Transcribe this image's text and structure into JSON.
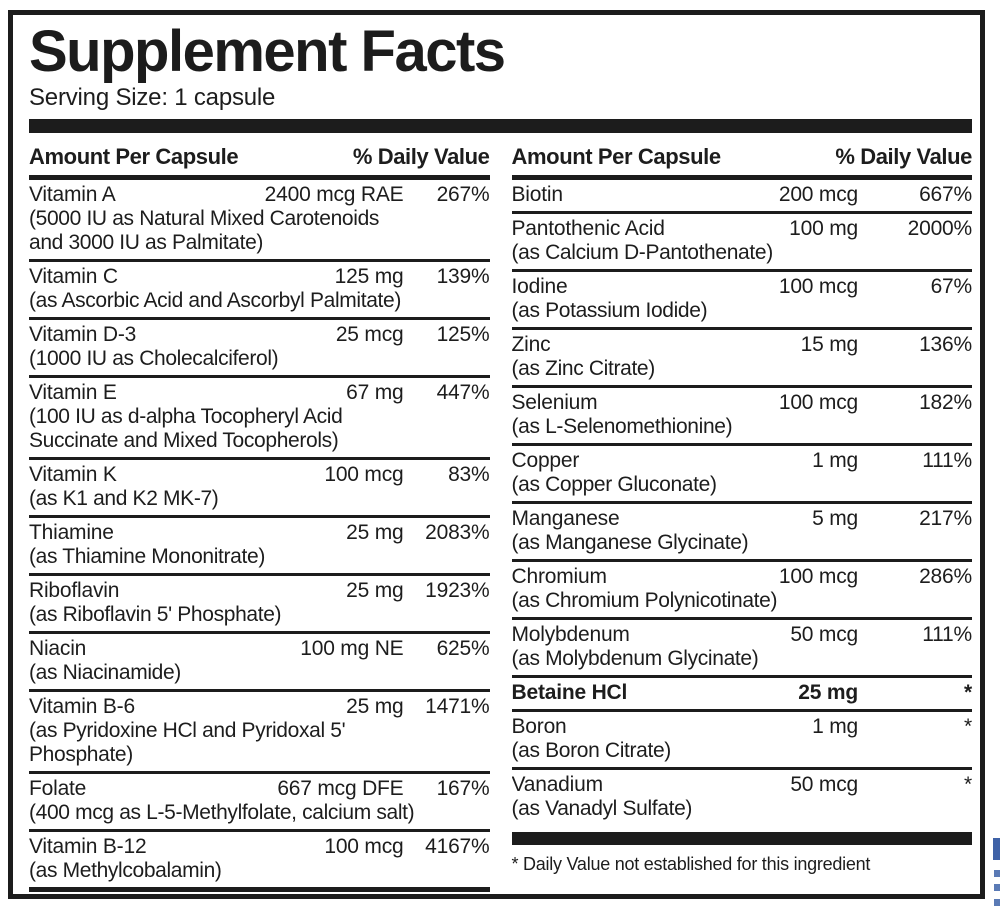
{
  "label": {
    "title": "Supplement Facts",
    "serving_size": "Serving Size: 1 capsule",
    "column_header": {
      "amount": "Amount Per Capsule",
      "daily_value": "% Daily Value"
    },
    "footnote": "* Daily Value not established for this ingredient"
  },
  "columns": {
    "left": [
      {
        "name": "Vitamin A",
        "amount": "2400 mcg RAE",
        "dv": "267%",
        "details": [
          "(5000 IU as Natural Mixed Carotenoids",
          "and 3000 IU as Palmitate)"
        ]
      },
      {
        "name": "Vitamin C",
        "amount": "125 mg",
        "dv": "139%",
        "details": [
          "(as Ascorbic Acid and Ascorbyl Palmitate)"
        ]
      },
      {
        "name": "Vitamin D-3",
        "amount": "25 mcg",
        "dv": "125%",
        "details": [
          "(1000 IU as Cholecalciferol)"
        ]
      },
      {
        "name": "Vitamin E",
        "amount": "67 mg",
        "dv": "447%",
        "details": [
          "(100 IU as d-alpha Tocopheryl Acid",
          "Succinate and Mixed Tocopherols)"
        ]
      },
      {
        "name": "Vitamin K",
        "amount": "100 mcg",
        "dv": "83%",
        "details": [
          "(as K1 and K2 MK-7)"
        ]
      },
      {
        "name": "Thiamine",
        "amount": "25 mg",
        "dv": "2083%",
        "details": [
          "(as Thiamine Mononitrate)"
        ]
      },
      {
        "name": "Riboflavin",
        "amount": "25 mg",
        "dv": "1923%",
        "details": [
          "(as Riboflavin 5' Phosphate)"
        ]
      },
      {
        "name": "Niacin",
        "amount": "100 mg NE",
        "dv": "625%",
        "details": [
          "(as Niacinamide)"
        ]
      },
      {
        "name": "Vitamin B-6",
        "amount": "25 mg",
        "dv": "1471%",
        "details": [
          "(as Pyridoxine HCl and Pyridoxal 5'",
          "Phosphate)"
        ]
      },
      {
        "name": "Folate",
        "amount": "667 mcg DFE",
        "dv": "167%",
        "details": [
          "(400 mcg as L-5-Methylfolate, calcium salt)"
        ]
      },
      {
        "name": "Vitamin B-12",
        "amount": "100 mcg",
        "dv": "4167%",
        "details": [
          "(as Methylcobalamin)"
        ]
      }
    ],
    "right": [
      {
        "name": "Biotin",
        "amount": "200 mcg",
        "dv": "667%",
        "details": []
      },
      {
        "name": "Pantothenic Acid",
        "amount": "100 mg",
        "dv": "2000%",
        "details": [
          "(as Calcium D-Pantothenate)"
        ]
      },
      {
        "name": "Iodine",
        "amount": "100 mcg",
        "dv": "67%",
        "details": [
          "(as Potassium Iodide)"
        ]
      },
      {
        "name": "Zinc",
        "amount": "15 mg",
        "dv": "136%",
        "details": [
          "(as Zinc Citrate)"
        ]
      },
      {
        "name": "Selenium",
        "amount": "100 mcg",
        "dv": "182%",
        "details": [
          "(as L-Selenomethionine)"
        ]
      },
      {
        "name": "Copper",
        "amount": "1 mg",
        "dv": "111%",
        "details": [
          "(as Copper Gluconate)"
        ]
      },
      {
        "name": "Manganese",
        "amount": "5 mg",
        "dv": "217%",
        "details": [
          "(as Manganese Glycinate)"
        ]
      },
      {
        "name": "Chromium",
        "amount": "100 mcg",
        "dv": "286%",
        "details": [
          "(as Chromium Polynicotinate)"
        ]
      },
      {
        "name": "Molybdenum",
        "amount": "50 mcg",
        "dv": "111%",
        "details": [
          "(as Molybdenum Glycinate)"
        ]
      },
      {
        "name": "Betaine HCl",
        "amount": "25 mg",
        "dv": "*",
        "details": [],
        "emphasis": true
      },
      {
        "name": "Boron",
        "amount": "1 mg",
        "dv": "*",
        "details": [
          "(as Boron Citrate)"
        ]
      },
      {
        "name": "Vanadium",
        "amount": "50 mcg",
        "dv": "*",
        "details": [
          "(as Vanadyl Sulfate)"
        ]
      }
    ]
  },
  "colors": {
    "ink": "#1c1c1c",
    "paper": "#ffffff",
    "scan_artifact_blue": "#3f62a7"
  }
}
